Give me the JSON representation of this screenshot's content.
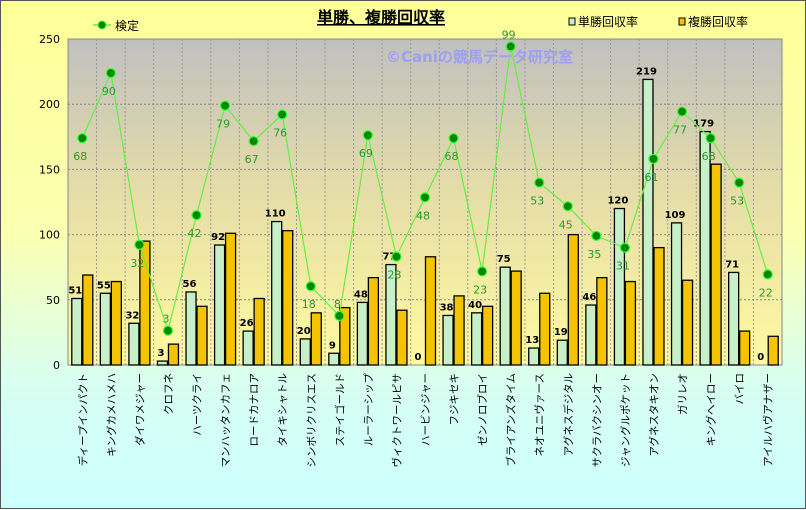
{
  "chart_data": {
    "type": "bar",
    "title": "単勝、複勝回収率",
    "watermark": "©Caniの競馬データ研究室",
    "categories": [
      "ディープインパクト",
      "キングカメハメハ",
      "ダイワメジャー",
      "クロフネ",
      "ハーツクライ",
      "マンハッタンカフェ",
      "ロードカナロア",
      "タイキシャトル",
      "シンボリクリスエス",
      "ステイゴールド",
      "ルーラーシップ",
      "ヴィクトワールピサ",
      "ハービンジャー",
      "フジキセキ",
      "ゼンノロブロイ",
      "ブライアンズタイム",
      "ネオユニヴァース",
      "アグネスデジタル",
      "サクラバクシンオー",
      "ジャングルポケット",
      "アグネスタキオン",
      "ガリレオ",
      "キングヘイロー",
      "バイロ",
      "アイルハヴアナザー"
    ],
    "series": [
      {
        "name": "単勝回収率",
        "type": "bar",
        "color": "#c8f0c8",
        "values": [
          51,
          55,
          32,
          3,
          56,
          92,
          26,
          110,
          20,
          9,
          48,
          77,
          0,
          38,
          40,
          75,
          13,
          19,
          46,
          120,
          219,
          109,
          179,
          71,
          0
        ]
      },
      {
        "name": "複勝回収率",
        "type": "bar",
        "color": "#f5c400",
        "values": [
          69,
          64,
          95,
          16,
          45,
          101,
          51,
          103,
          40,
          44,
          67,
          42,
          83,
          53,
          45,
          72,
          55,
          100,
          67,
          64,
          90,
          65,
          154,
          26,
          22
        ]
      },
      {
        "name": "検定",
        "type": "line",
        "axis": "secondary",
        "color": "#66ee44",
        "marker_color": "#008800",
        "values": [
          68,
          90,
          32,
          3,
          42,
          79,
          67,
          76,
          18,
          8,
          69,
          28,
          48,
          68,
          23,
          99,
          53,
          45,
          35,
          31,
          61,
          77,
          68,
          53,
          22
        ]
      }
    ],
    "ylim": [
      0,
      250
    ],
    "yticks": [
      0,
      50,
      100,
      150,
      200,
      250
    ],
    "y2lim": [
      -8.6,
      101.5
    ],
    "grid": true,
    "legend_placement": "top",
    "plot_background": [
      "#c0c0c0",
      "#fff8a0"
    ]
  }
}
